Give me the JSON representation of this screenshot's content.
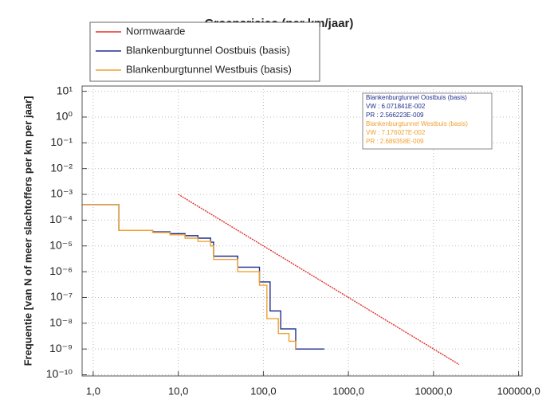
{
  "chart_data": {
    "type": "line",
    "title": "Groepsrisico (per km/jaar)",
    "ylabel": "Frequentie [van N of meer slachtoffers per km per jaar]",
    "xscale": "log",
    "yscale": "log",
    "grid": true,
    "legend": "upper left",
    "xlim": [
      0.74,
      110000
    ],
    "ylim": [
      9e-11,
      16
    ],
    "xticks": [
      {
        "value": 1,
        "label": "1,0"
      },
      {
        "value": 10,
        "label": "10,0"
      },
      {
        "value": 100,
        "label": "100,0"
      },
      {
        "value": 1000,
        "label": "1000,0"
      },
      {
        "value": 10000,
        "label": "10000,0"
      },
      {
        "value": 100000,
        "label": "100000,0"
      }
    ],
    "yticks": [
      {
        "value": 10,
        "label": "10¹"
      },
      {
        "value": 1,
        "label": "10⁰"
      },
      {
        "value": 0.1,
        "label": "10⁻¹"
      },
      {
        "value": 0.01,
        "label": "10⁻²"
      },
      {
        "value": 0.001,
        "label": "10⁻³"
      },
      {
        "value": 0.0001,
        "label": "10⁻⁴"
      },
      {
        "value": 1e-05,
        "label": "10⁻⁵"
      },
      {
        "value": 1e-06,
        "label": "10⁻⁶"
      },
      {
        "value": 1e-07,
        "label": "10⁻⁷"
      },
      {
        "value": 1e-08,
        "label": "10⁻⁸"
      },
      {
        "value": 1e-09,
        "label": "10⁻⁹"
      },
      {
        "value": 1e-10,
        "label": "10⁻¹⁰"
      }
    ],
    "series": [
      {
        "name": "Normwaarde",
        "color": "#e0302a",
        "step": false,
        "x": [
          10,
          20000
        ],
        "values": [
          0.001,
          2.5e-10
        ]
      },
      {
        "name": "Blankenburgtunnel Oostbuis (basis)",
        "color": "#1f2f8c",
        "step": true,
        "x": [
          0.75,
          2,
          5,
          8,
          12,
          17,
          24,
          26,
          50,
          90,
          120,
          160,
          240,
          520
        ],
        "values": [
          0.0004,
          4e-05,
          3.5e-05,
          3e-05,
          2.5e-05,
          2e-05,
          1.4e-05,
          4e-06,
          1.5e-06,
          4e-07,
          3e-08,
          6e-09,
          1e-09,
          1e-09
        ]
      },
      {
        "name": "Blankenburgtunnel Westbuis (basis)",
        "color": "#f0a030",
        "step": true,
        "x": [
          0.75,
          2,
          5,
          8,
          12,
          17,
          24,
          26,
          50,
          90,
          110,
          150,
          200,
          240
        ],
        "values": [
          0.0004,
          4e-05,
          3.3e-05,
          2.7e-05,
          2e-05,
          1.5e-05,
          1e-05,
          3e-06,
          1e-06,
          3e-07,
          1.5e-08,
          4e-09,
          2e-09,
          1e-09
        ]
      }
    ],
    "info_box": [
      {
        "text": "Blankenburgtunnel Oostbuis (basis)",
        "color": "#1f2f8c"
      },
      {
        "text": "VW : 6.071841E-002",
        "color": "#1f2f8c"
      },
      {
        "text": "PR : 2.566223E-009",
        "color": "#1f2f8c"
      },
      {
        "text": "Blankenburgtunnel Westbuis (basis)",
        "color": "#f0a030"
      },
      {
        "text": "VW : 7.176027E-002",
        "color": "#f0a030"
      },
      {
        "text": "PR : 2.689358E-009",
        "color": "#f0a030"
      }
    ]
  }
}
